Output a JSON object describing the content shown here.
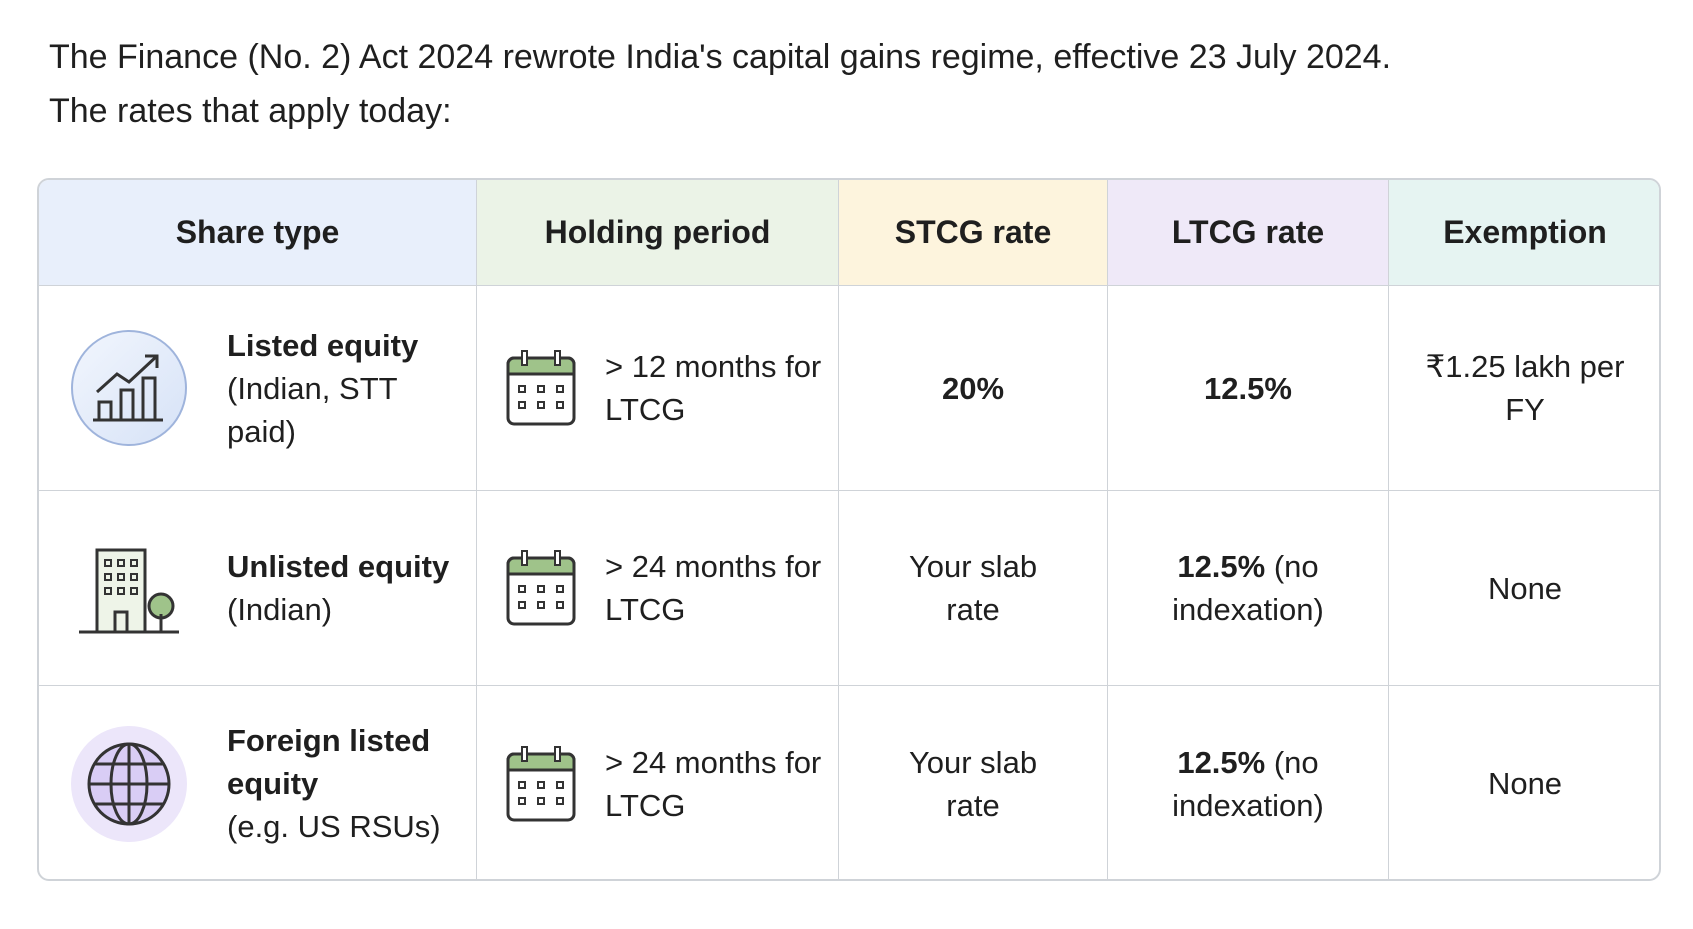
{
  "intro": {
    "lines": [
      "The Finance (No. 2) Act 2024 rewrote India's capital gains regime, effective 23 July 2024.",
      "The rates that apply today:"
    ]
  },
  "table": {
    "headers": [
      "Share type",
      "Holding period",
      "STCG rate",
      "LTCG rate",
      "Exemption"
    ],
    "rows": [
      {
        "share_type": {
          "name": "Listed equity",
          "detail": "(Indian, STT paid)"
        },
        "holding_period": "> 12 months for LTCG",
        "stcg_rate": "20%",
        "ltcg_rate": {
          "rate": "12.5%"
        },
        "exemption": "₹1.25 lakh per FY"
      },
      {
        "share_type": {
          "name": "Unlisted equity",
          "detail": "(Indian)"
        },
        "holding_period": "> 24 months for LTCG",
        "stcg_rate": "Your slab rate",
        "ltcg_rate": {
          "rate": "12.5%",
          "note": "(no indexation)"
        },
        "exemption": "None"
      },
      {
        "share_type": {
          "name": "Foreign listed equity",
          "detail": "(e.g. US RSUs)"
        },
        "holding_period": "> 24 months for LTCG",
        "stcg_rate": "Your slab rate",
        "ltcg_rate": {
          "rate": "12.5%",
          "note": "(no indexation)"
        },
        "exemption": "None"
      }
    ]
  }
}
